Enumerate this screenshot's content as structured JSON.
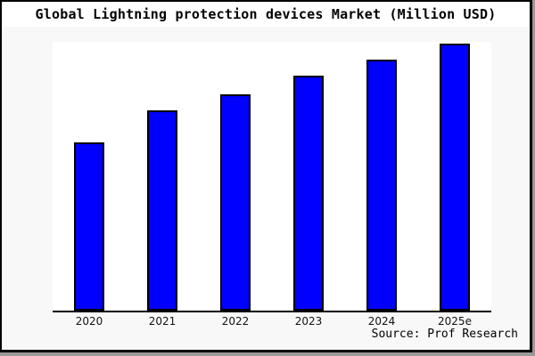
{
  "window": {
    "background_color": "#f8f8f8",
    "frame_border_color": "#000000",
    "shadow_color": "#999999",
    "title_band_color": "#ffffff"
  },
  "header": {
    "title": "Global Lightning protection devices Market (Million USD)"
  },
  "footer": {
    "source_label": "Source: Prof Research"
  },
  "chart_data": {
    "type": "bar",
    "title": "Global Lightning protection devices Market (Million USD)",
    "categories": [
      "2020",
      "2021",
      "2022",
      "2023",
      "2024",
      "2025e"
    ],
    "values": [
      63,
      75,
      81,
      88,
      94,
      100
    ],
    "values_unit": "relative index (2025e = 100); chart shows no numeric y-axis scale",
    "xlabel": "",
    "ylabel": "",
    "ylim": [
      0,
      100.7
    ],
    "grid": false,
    "legend": false,
    "y_axis_ticks": [],
    "bar_color": "#0000ff",
    "bar_border_color": "#000000",
    "plot_background": "#ffffff"
  }
}
